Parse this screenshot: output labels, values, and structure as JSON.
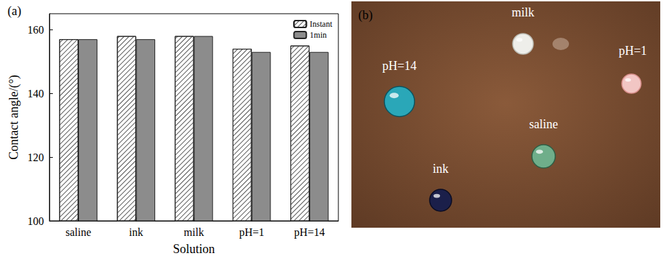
{
  "chart_data": {
    "type": "bar",
    "title": "(a)",
    "categories": [
      "saline",
      "ink",
      "milk",
      "pH=1",
      "pH=14"
    ],
    "series": [
      {
        "name": "Instant",
        "color": "#ffffff",
        "values": [
          157,
          158,
          158,
          154,
          155
        ]
      },
      {
        "name": "1min",
        "color": "#8c8c8c",
        "values": [
          157,
          157,
          158,
          153,
          153
        ]
      }
    ],
    "x_label": "Solution",
    "y_label": "Contact angle/(°)",
    "ylim": [
      100,
      165
    ],
    "yticks": [
      100,
      120,
      140,
      160
    ],
    "grid": false,
    "legend": "upper right"
  },
  "photo": {
    "label": "(b)",
    "droplets": [
      "pH=14",
      "milk",
      "pH=1",
      "saline",
      "ink"
    ]
  }
}
